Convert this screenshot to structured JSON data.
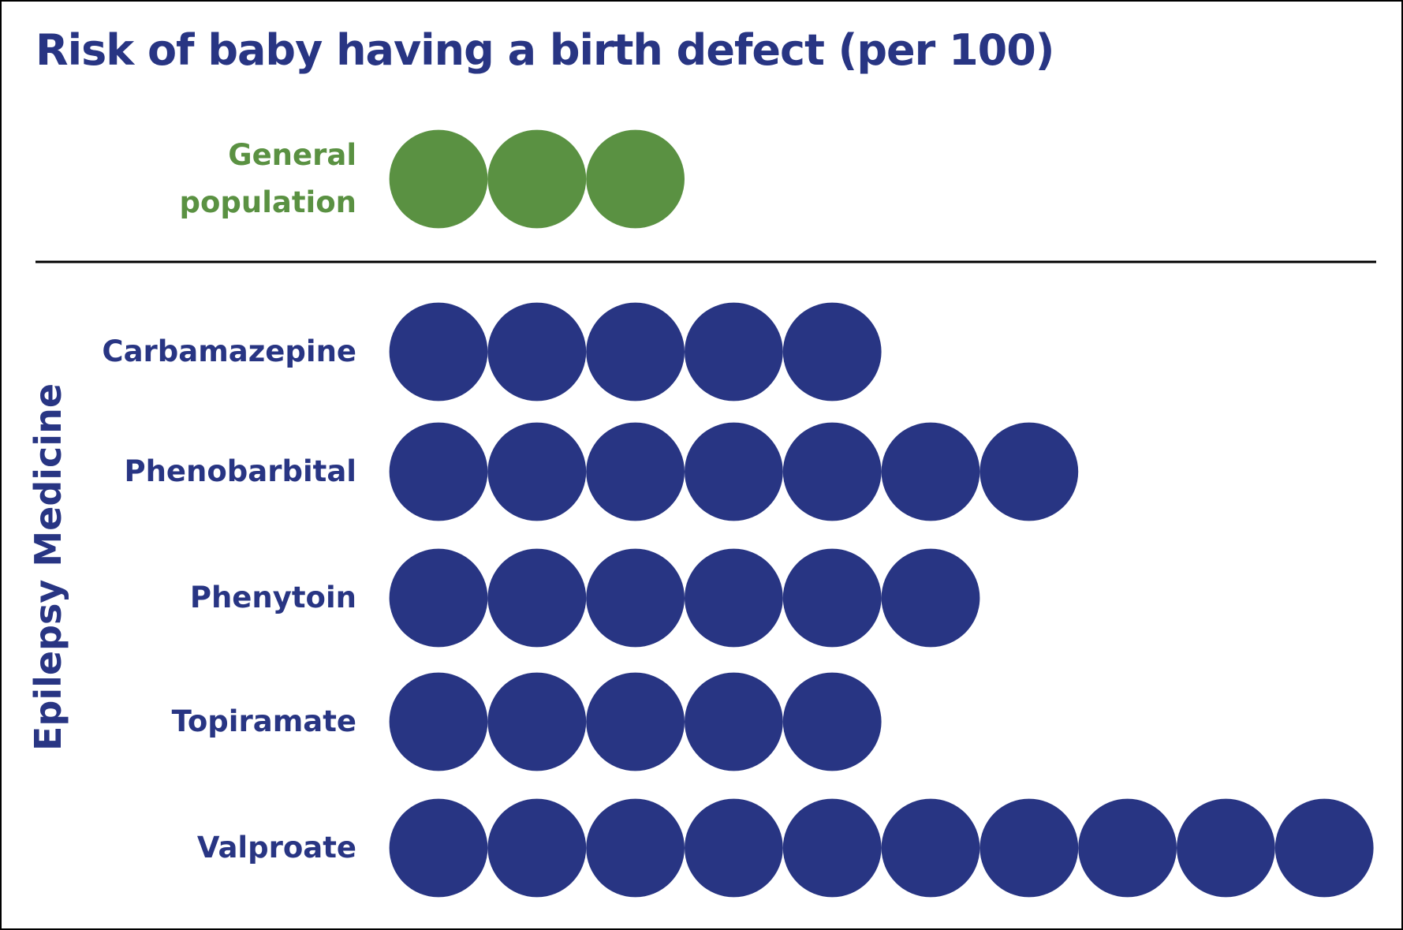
{
  "chart_data": {
    "type": "pictogram",
    "title": "Risk of baby having a birth defect (per 100)",
    "group_label": "Epilepsy Medicine",
    "categories": [
      "General population",
      "Carbamazepine",
      "Phenobarbital",
      "Phenytoin",
      "Topiramate",
      "Valproate"
    ],
    "values": [
      3,
      5,
      7,
      6,
      5,
      10
    ],
    "colors": [
      "#5a9142",
      "#283583",
      "#283583",
      "#283583",
      "#283583",
      "#283583"
    ],
    "title_color": "#283583"
  }
}
